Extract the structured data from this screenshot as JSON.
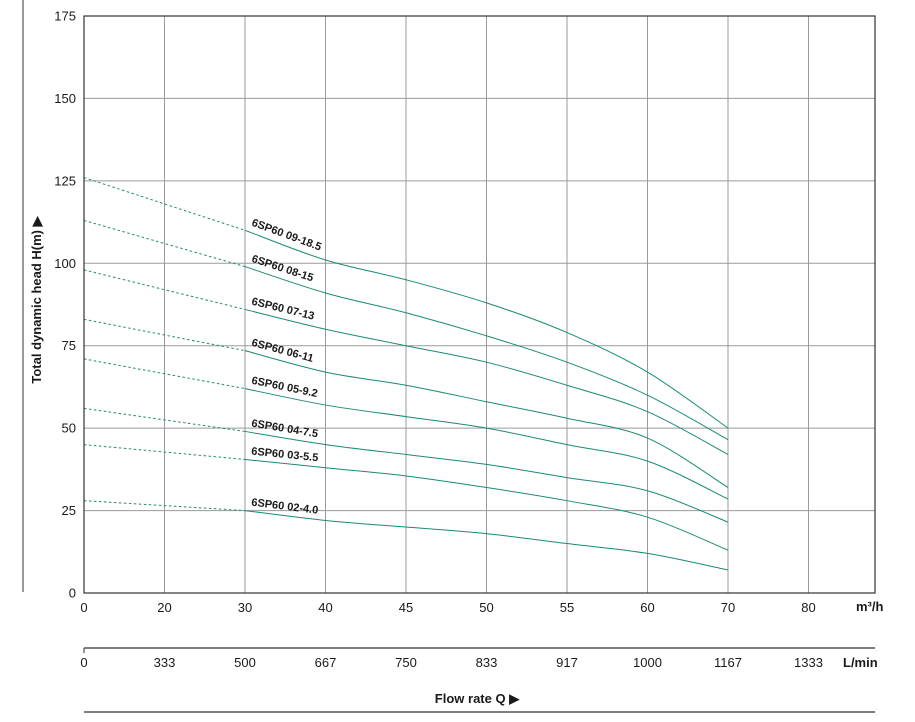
{
  "chart_data": {
    "type": "line",
    "y_axis": {
      "label": "Total dynamic head H(m) ▶",
      "ticks": [
        0,
        25,
        50,
        75,
        100,
        125,
        150,
        175
      ],
      "ylim": [
        0,
        175
      ]
    },
    "x_axis": {
      "ticks": [
        0,
        20,
        30,
        40,
        45,
        50,
        55,
        60,
        70,
        80
      ],
      "unit": "m³/h"
    },
    "x_axis_secondary": {
      "ticks": [
        "0",
        "333",
        "500",
        "667",
        "750",
        "833",
        "917",
        "1000",
        "1167",
        "1333"
      ],
      "unit": "L/min"
    },
    "xlabel": "Flow rate Q ▶",
    "grid": true,
    "series": [
      {
        "name": "6SP60 09-18.5",
        "x": [
          0,
          30,
          40,
          45,
          50,
          55,
          60,
          70
        ],
        "y": [
          126,
          110,
          101,
          95,
          88,
          79,
          67,
          50
        ]
      },
      {
        "name": "6SP60 08-15",
        "x": [
          0,
          30,
          40,
          45,
          50,
          55,
          60,
          70
        ],
        "y": [
          113,
          99,
          91,
          85,
          78,
          70,
          60,
          46.5
        ]
      },
      {
        "name": "6SP60 07-13",
        "x": [
          0,
          30,
          40,
          45,
          50,
          55,
          60,
          70
        ],
        "y": [
          98,
          86,
          80,
          75,
          70,
          63,
          55,
          42
        ]
      },
      {
        "name": "6SP60 06-11",
        "x": [
          0,
          30,
          40,
          45,
          50,
          55,
          60,
          70
        ],
        "y": [
          83,
          73.5,
          67,
          63,
          58,
          53,
          47,
          32
        ]
      },
      {
        "name": "6SP60 05-9.2",
        "x": [
          0,
          30,
          40,
          45,
          50,
          55,
          60,
          70
        ],
        "y": [
          71,
          62,
          57,
          53.5,
          50,
          45,
          40,
          28.5
        ]
      },
      {
        "name": "6SP60 04-7.5",
        "x": [
          0,
          30,
          40,
          45,
          50,
          55,
          60,
          70
        ],
        "y": [
          56,
          49,
          45,
          42,
          39,
          35,
          31,
          21.5
        ]
      },
      {
        "name": "6SP60 03-5.5",
        "x": [
          0,
          30,
          40,
          45,
          50,
          55,
          60,
          70
        ],
        "y": [
          45,
          40.5,
          38,
          35.5,
          32,
          28,
          23,
          13
        ]
      },
      {
        "name": "6SP60 02-4.0",
        "x": [
          0,
          30,
          40,
          45,
          50,
          55,
          60,
          70
        ],
        "y": [
          28,
          25,
          22,
          20,
          18,
          15,
          12,
          7
        ]
      }
    ],
    "solid_from_x": 30,
    "curve_color": "#1b8a74",
    "label_color": "#1b8a74"
  }
}
